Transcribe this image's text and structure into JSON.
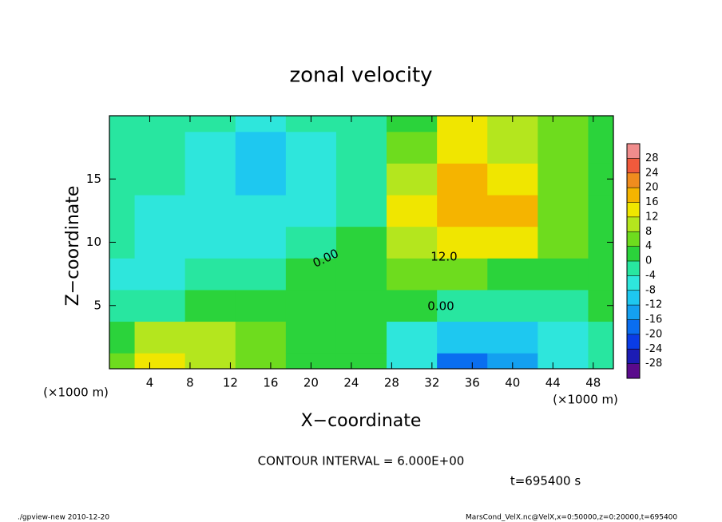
{
  "chart_data": {
    "type": "heatmap",
    "title": "zonal velocity",
    "x_label": "X−coordinate",
    "y_label": "Z−coordinate",
    "x_unit": "(×1000 m)",
    "y_unit": "(×1000 m)",
    "xlim": [
      0,
      50
    ],
    "ylim": [
      0,
      20
    ],
    "xticks": [
      4,
      8,
      12,
      16,
      20,
      24,
      28,
      32,
      36,
      40,
      44,
      48
    ],
    "yticks": [
      5,
      10,
      15
    ],
    "x": [
      0,
      5,
      10,
      15,
      20,
      25,
      30,
      35,
      40,
      45,
      50
    ],
    "y": [
      0,
      2.5,
      5,
      7.5,
      10,
      12.5,
      15,
      17.5,
      20
    ],
    "z": [
      [
        6,
        12,
        10,
        6,
        2,
        0,
        -6,
        -20,
        -14,
        -8,
        -2
      ],
      [
        2,
        8,
        8,
        4,
        2,
        0,
        -6,
        -10,
        -10,
        -8,
        -2
      ],
      [
        -4,
        -2,
        2,
        2,
        2,
        0,
        0,
        -2,
        -2,
        -2,
        0
      ],
      [
        -6,
        -6,
        -4,
        -2,
        0,
        2,
        4,
        4,
        2,
        2,
        0
      ],
      [
        -2,
        -6,
        -8,
        -6,
        -4,
        0,
        10,
        14,
        12,
        4,
        2
      ],
      [
        -2,
        -6,
        -8,
        -8,
        -6,
        -2,
        12,
        16,
        16,
        6,
        2
      ],
      [
        -2,
        -4,
        -8,
        -10,
        -6,
        -2,
        10,
        16,
        12,
        4,
        2
      ],
      [
        -2,
        -4,
        -6,
        -10,
        -6,
        -2,
        6,
        14,
        10,
        4,
        2
      ],
      [
        -2,
        -4,
        -4,
        -6,
        -4,
        -2,
        2,
        12,
        10,
        4,
        2
      ]
    ],
    "clim": [
      -32,
      32
    ],
    "colors": [
      "#5a0a8c",
      "#1c1cb4",
      "#0a3ce6",
      "#0a6ef0",
      "#14a0f0",
      "#1ec8f0",
      "#2ee6dc",
      "#28e6a0",
      "#2bd33b",
      "#6edc1e",
      "#b4e61e",
      "#f0e600",
      "#f5b400",
      "#f08c1e",
      "#f05a3c",
      "#f08c8c"
    ],
    "cticks": [
      28,
      24,
      20,
      16,
      12,
      8,
      4,
      0,
      -4,
      -8,
      -12,
      -16,
      -20,
      -24,
      -28
    ],
    "contour_labels": [
      "0.00",
      "12.0",
      "0.00"
    ],
    "contour_interval": "CONTOUR INTERVAL = 6.000E+00",
    "time_label": "t=695400 s",
    "footer_left": "./gpview-new  2010-12-20",
    "footer_right": "MarsCond_VelX.nc@VelX,x=0:50000,z=0:20000,t=695400"
  }
}
